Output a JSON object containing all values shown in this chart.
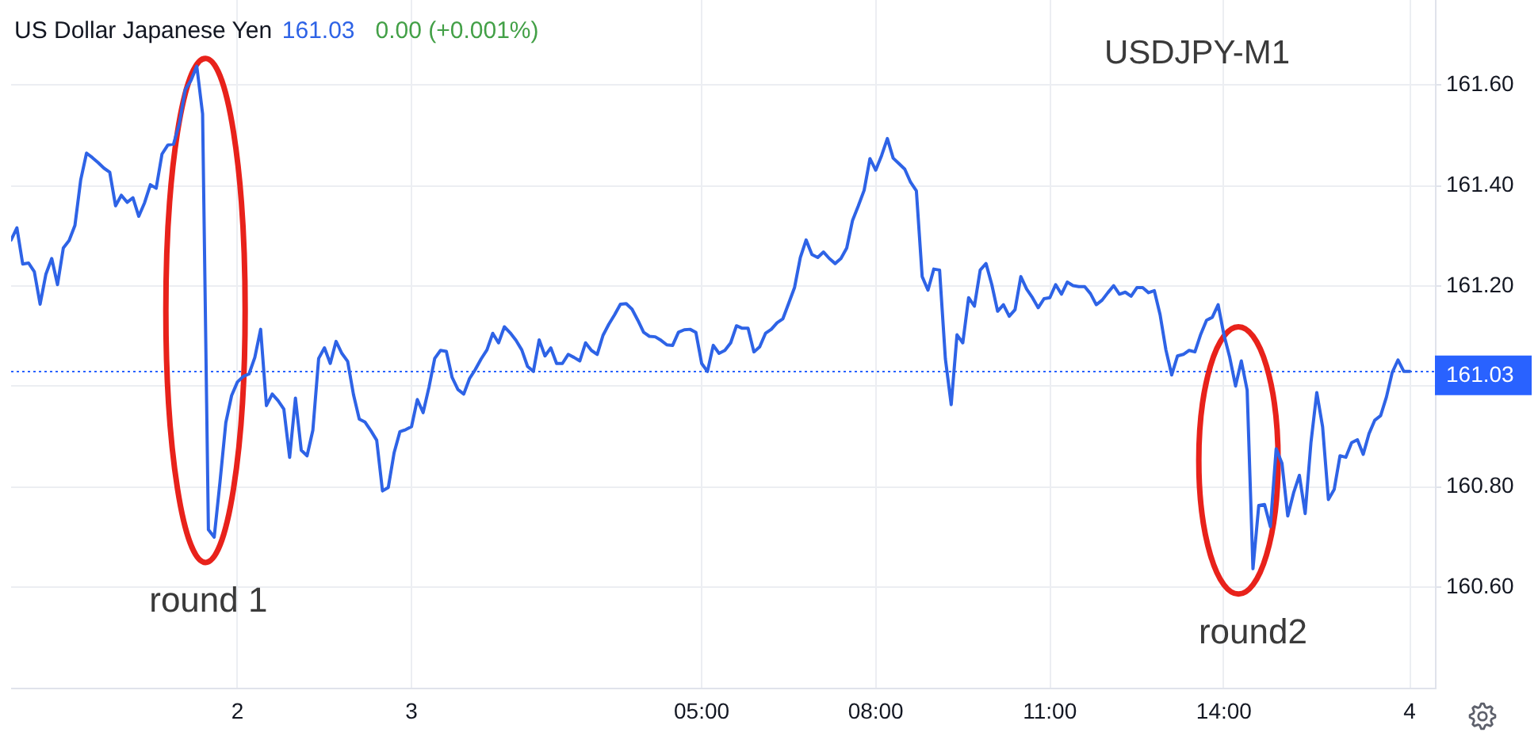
{
  "chart_data": {
    "type": "line",
    "title": "US Dollar Japanese Yen",
    "annotations": [
      "161.03",
      "0.00 (+0.001%)",
      "USDJPY-M1",
      "round 1",
      "round2"
    ],
    "categories": [
      null,
      null,
      null,
      null,
      null,
      null,
      null,
      null,
      null,
      null,
      null,
      null,
      null,
      null,
      null,
      null,
      null,
      null,
      null,
      null,
      null,
      null,
      null,
      null,
      null,
      null,
      null,
      null,
      null,
      null,
      null,
      null,
      null,
      null,
      null,
      null,
      null,
      null,
      null,
      "2",
      null,
      null,
      null,
      null,
      null,
      null,
      null,
      null,
      null,
      null,
      null,
      null,
      null,
      null,
      null,
      null,
      null,
      null,
      null,
      null,
      null,
      null,
      null,
      null,
      null,
      null,
      null,
      null,
      null,
      "3",
      null,
      null,
      null,
      null,
      null,
      null,
      null,
      null,
      null,
      null,
      null,
      null,
      null,
      null,
      null,
      null,
      null,
      null,
      null,
      null,
      null,
      null,
      null,
      null,
      null,
      null,
      null,
      null,
      null,
      null,
      null,
      null,
      null,
      null,
      null,
      null,
      null,
      null,
      null,
      null,
      null,
      null,
      null,
      null,
      null,
      null,
      null,
      null,
      null,
      "05:00",
      null,
      null,
      null,
      null,
      null,
      null,
      null,
      null,
      null,
      null,
      null,
      null,
      null,
      null,
      null,
      null,
      null,
      null,
      null,
      null,
      null,
      null,
      null,
      null,
      null,
      null,
      null,
      null,
      null,
      "08:00",
      null,
      null,
      null,
      null,
      null,
      null,
      null,
      null,
      null,
      null,
      null,
      null,
      null,
      null,
      null,
      null,
      null,
      null,
      null,
      null,
      null,
      null,
      null,
      null,
      null,
      null,
      null,
      null,
      null,
      "11:00",
      null,
      null,
      null,
      null,
      null,
      null,
      null,
      null,
      null,
      null,
      null,
      null,
      null,
      null,
      null,
      null,
      null,
      null,
      null,
      null,
      null,
      null,
      null,
      null,
      null,
      null,
      null,
      null,
      null,
      "14:00",
      null,
      null,
      null,
      null,
      null,
      null,
      null,
      null,
      null,
      null,
      null,
      null,
      null,
      null,
      null,
      null,
      null,
      null,
      null,
      null,
      null,
      null,
      null,
      null,
      null,
      null,
      null,
      null,
      null,
      null,
      null,
      "4"
    ],
    "values": [
      161.292,
      161.316,
      161.244,
      161.246,
      161.229,
      161.164,
      161.224,
      161.255,
      161.203,
      161.276,
      161.291,
      161.321,
      161.412,
      161.465,
      161.456,
      161.446,
      161.435,
      161.427,
      161.36,
      161.381,
      161.367,
      161.376,
      161.339,
      161.366,
      161.402,
      161.395,
      161.463,
      161.481,
      161.483,
      161.524,
      161.591,
      161.61,
      161.638,
      161.543,
      160.715,
      160.7,
      160.81,
      160.928,
      160.982,
      161.009,
      161.02,
      161.025,
      161.058,
      161.114,
      160.962,
      160.985,
      160.972,
      160.955,
      160.859,
      160.977,
      160.873,
      160.862,
      160.913,
      161.056,
      161.077,
      161.046,
      161.09,
      161.066,
      161.05,
      160.984,
      160.935,
      160.929,
      160.912,
      160.893,
      160.792,
      160.799,
      160.868,
      160.91,
      160.914,
      160.92,
      160.974,
      160.948,
      160.998,
      161.056,
      161.072,
      161.07,
      161.018,
      160.994,
      160.985,
      161.016,
      161.034,
      161.055,
      161.073,
      161.106,
      161.087,
      161.119,
      161.107,
      161.092,
      161.073,
      161.04,
      161.03,
      161.093,
      161.061,
      161.077,
      161.046,
      161.046,
      161.064,
      161.058,
      161.051,
      161.087,
      161.072,
      161.064,
      161.102,
      161.124,
      161.143,
      161.164,
      161.165,
      161.154,
      161.132,
      161.108,
      161.1,
      161.099,
      161.092,
      161.083,
      161.082,
      161.108,
      161.113,
      161.114,
      161.108,
      161.046,
      161.03,
      161.082,
      161.066,
      161.072,
      161.087,
      161.121,
      161.116,
      161.116,
      161.069,
      161.079,
      161.106,
      161.114,
      161.127,
      161.135,
      161.166,
      161.197,
      161.257,
      161.292,
      161.263,
      161.257,
      161.268,
      161.255,
      161.245,
      161.255,
      161.276,
      161.331,
      161.36,
      161.391,
      161.454,
      161.431,
      161.46,
      161.494,
      161.455,
      161.444,
      161.433,
      161.407,
      161.39,
      161.219,
      161.192,
      161.234,
      161.232,
      161.055,
      160.964,
      161.103,
      161.087,
      161.177,
      161.16,
      161.232,
      161.245,
      161.203,
      161.15,
      161.163,
      161.14,
      161.153,
      161.219,
      161.194,
      161.177,
      161.157,
      161.175,
      161.177,
      161.203,
      161.184,
      161.208,
      161.201,
      161.199,
      161.199,
      161.185,
      161.163,
      161.172,
      161.187,
      161.201,
      161.184,
      161.188,
      161.18,
      161.197,
      161.197,
      161.187,
      161.191,
      161.143,
      161.073,
      161.023,
      161.061,
      161.064,
      161.072,
      161.069,
      161.104,
      161.132,
      161.138,
      161.163,
      161.103,
      161.058,
      161.001,
      161.051,
      160.993,
      160.637,
      160.763,
      160.765,
      160.721,
      160.876,
      160.847,
      160.742,
      160.788,
      160.823,
      160.747,
      160.889,
      160.988,
      160.92,
      160.775,
      160.795,
      160.862,
      160.859,
      160.888,
      160.894,
      160.865,
      160.906,
      160.933,
      160.942,
      160.979,
      161.028,
      161.053,
      161.03,
      161.03
    ],
    "color": "#2e63e6",
    "ylim": [
      160.4,
      161.77
    ],
    "yticks": [
      {
        "value": 160.6,
        "label": "160.60"
      },
      {
        "value": 160.8,
        "label": "160.80"
      },
      {
        "value": 161,
        "label": null
      },
      {
        "value": 161.2,
        "label": "161.20"
      },
      {
        "value": 161.4,
        "label": "161.40"
      },
      {
        "value": 161.6,
        "label": "161.60"
      }
    ],
    "grid": true,
    "ref_lines": [
      {
        "axis": "y",
        "value": 161.03,
        "label": "161.03",
        "color": "#2962ff",
        "line_style": "dotted"
      }
    ]
  }
}
